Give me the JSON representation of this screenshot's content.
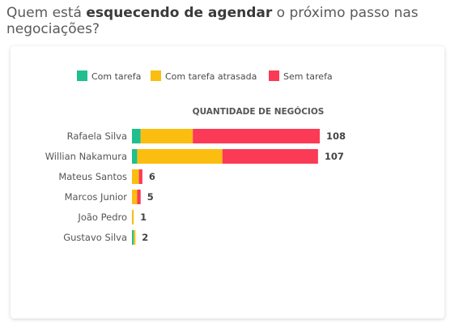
{
  "question": {
    "prefix": "Quem está ",
    "emphasis": "esquecendo de agendar",
    "suffix": " o próximo passo nas negociações?"
  },
  "colors": {
    "com_tarefa": "#1fbf8f",
    "com_tarefa_atrasada": "#fbbd10",
    "sem_tarefa": "#fb3a55"
  },
  "chart_data": {
    "type": "bar",
    "orientation": "horizontal",
    "stacked": true,
    "title": "QUANTIDADE DE NEGÓCIOS",
    "legend_position": "top",
    "grid": false,
    "categories": [
      "Rafaela Silva",
      "Willian Nakamura",
      "Mateus Santos",
      "Marcos Junior",
      "João Pedro",
      "Gustavo Silva"
    ],
    "series": [
      {
        "name": "Com tarefa",
        "color": "#1fbf8f",
        "values": [
          5,
          3,
          0,
          0,
          0,
          1
        ]
      },
      {
        "name": "Com tarefa atrasada",
        "color": "#fbbd10",
        "values": [
          30,
          49,
          4,
          3,
          1,
          1
        ]
      },
      {
        "name": "Sem tarefa",
        "color": "#fb3a55",
        "values": [
          73,
          55,
          2,
          2,
          0,
          0
        ]
      }
    ],
    "totals": [
      108,
      107,
      6,
      5,
      1,
      2
    ],
    "xlim": [
      0,
      108
    ]
  }
}
